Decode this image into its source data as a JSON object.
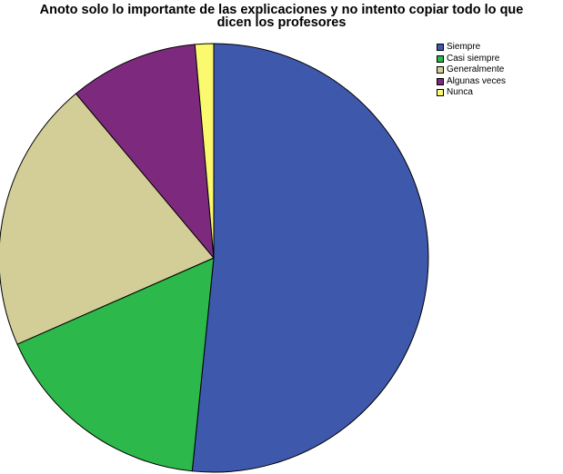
{
  "chart_data": {
    "type": "pie",
    "title_lines": [
      "Anoto solo lo importante de las explicaciones y no intento copiar todo lo que",
      "dicen los profesores"
    ],
    "series": [
      {
        "name": "Siempre",
        "value": 51.6,
        "color": "#3e58ac"
      },
      {
        "name": "Casi siempre",
        "value": 16.8,
        "color": "#2cb84a"
      },
      {
        "name": "Generalmente",
        "value": 20.5,
        "color": "#d3ce98"
      },
      {
        "name": "Algunas veces",
        "value": 9.7,
        "color": "#7d2a7e"
      },
      {
        "name": "Nunca",
        "value": 1.4,
        "color": "#fbf96e"
      }
    ],
    "start_angle": "12 o'clock",
    "direction": "clockwise",
    "legend_position": "top-right"
  }
}
